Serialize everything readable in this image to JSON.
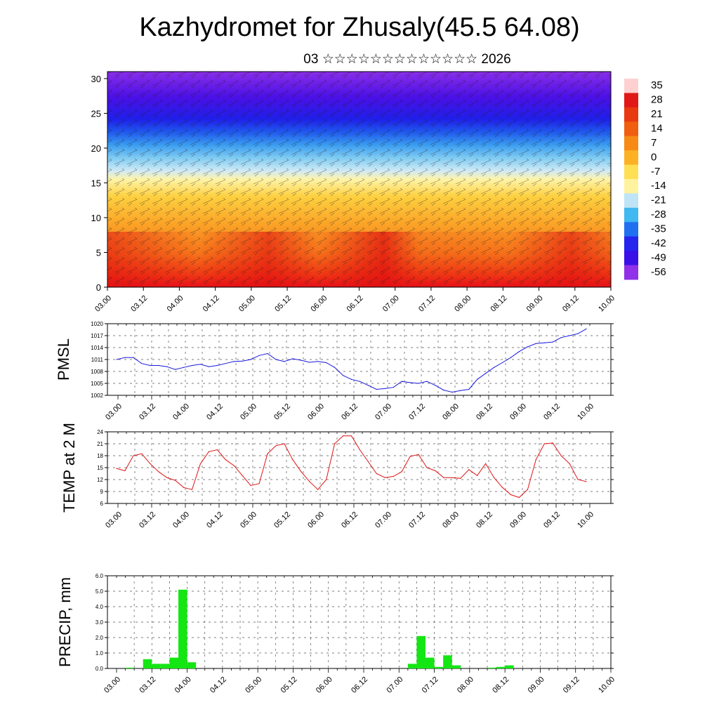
{
  "title": "Kazhydromet for Zhusaly(45.5 64.08)",
  "subtitle": "03 ☆☆☆☆☆☆☆☆☆☆☆☆☆ 2026",
  "x_tick_labels": [
    "03.00",
    "03.12",
    "04.00",
    "04.12",
    "05.00",
    "05.12",
    "06.00",
    "06.12",
    "07.00",
    "07.12",
    "08.00",
    "08.12",
    "09.00",
    "09.12",
    "10.00"
  ],
  "chart_data": [
    {
      "type": "heatmap",
      "name": "temperature-wind cross-section",
      "yticks": [
        0,
        5,
        10,
        15,
        20,
        25,
        30
      ],
      "ylim": [
        0,
        31
      ],
      "colorbar": {
        "labels": [
          "35",
          "28",
          "21",
          "14",
          "7",
          "0",
          "-7",
          "-14",
          "-21",
          "-28",
          "-35",
          "-42",
          "-49",
          "-56"
        ],
        "colors": [
          "#ffd0d0",
          "#e01818",
          "#e83a10",
          "#f05f10",
          "#f78a15",
          "#fcb125",
          "#ffe055",
          "#fff3a0",
          "#bfe4f5",
          "#40b8f0",
          "#2070f0",
          "#2525ee",
          "#3a10e6",
          "#9030e8"
        ]
      }
    },
    {
      "type": "line",
      "ylabel": "PMSL",
      "ylim": [
        1002,
        1020
      ],
      "yticks": [
        "1002",
        "1005",
        "1008",
        "1011",
        "1014",
        "1017",
        "1020"
      ],
      "values": [
        1011,
        1011.5,
        1011.5,
        1010,
        1009.5,
        1009.5,
        1009.2,
        1008.5,
        1009,
        1009.5,
        1009.8,
        1009.2,
        1009.5,
        1010,
        1010.5,
        1010.6,
        1011,
        1012,
        1012.5,
        1011,
        1010.5,
        1011.2,
        1010.8,
        1010.3,
        1010.5,
        1010.2,
        1009,
        1007,
        1006,
        1005.5,
        1004.5,
        1003.5,
        1003.7,
        1004,
        1005.5,
        1005.2,
        1005,
        1005.5,
        1004.5,
        1003.3,
        1002.8,
        1003.2,
        1003.5,
        1006,
        1007.5,
        1009,
        1010.2,
        1011.5,
        1013,
        1014.2,
        1015,
        1015.2,
        1015.4,
        1016.5,
        1017,
        1017.5,
        1018.7
      ]
    },
    {
      "type": "line",
      "ylabel": "TEMP at 2 M",
      "ylim": [
        6,
        24
      ],
      "yticks": [
        "6",
        "9",
        "12",
        "15",
        "18",
        "21",
        "24"
      ],
      "values": [
        14.8,
        14.2,
        18,
        18.5,
        16,
        14,
        12.5,
        11.8,
        10,
        9.5,
        16,
        19,
        19.5,
        17,
        15.5,
        13,
        10.5,
        11,
        18.5,
        20.5,
        21,
        17,
        14,
        11.5,
        9.5,
        12,
        21,
        23,
        23,
        19.5,
        16.5,
        13.5,
        12.5,
        12.8,
        14,
        17.8,
        18.3,
        15,
        14.2,
        12.5,
        12.5,
        12.3,
        14.5,
        13,
        16,
        12.5,
        10,
        8.2,
        7.5,
        9.5,
        17,
        21,
        21.2,
        18,
        16,
        12,
        11.5
      ]
    },
    {
      "type": "bar",
      "ylabel": "PRECIP, mm",
      "ylim": [
        0,
        6
      ],
      "yticks": [
        "0.0",
        "1.0",
        "2.0",
        "3.0",
        "4.0",
        "5.0",
        "6.0"
      ],
      "bar_values": [
        0,
        0.05,
        0,
        0.6,
        0.3,
        0.3,
        0.7,
        5.1,
        0.4,
        0,
        0,
        0,
        0,
        0,
        0,
        0,
        0,
        0,
        0,
        0,
        0,
        0,
        0,
        0,
        0,
        0,
        0,
        0,
        0,
        0,
        0,
        0,
        0,
        0.3,
        2.1,
        0.7,
        0.1,
        0.85,
        0.2,
        0,
        0,
        0,
        0.05,
        0.1,
        0.2,
        0,
        0,
        0,
        0,
        0,
        0,
        0,
        0,
        0,
        0,
        0
      ]
    }
  ]
}
